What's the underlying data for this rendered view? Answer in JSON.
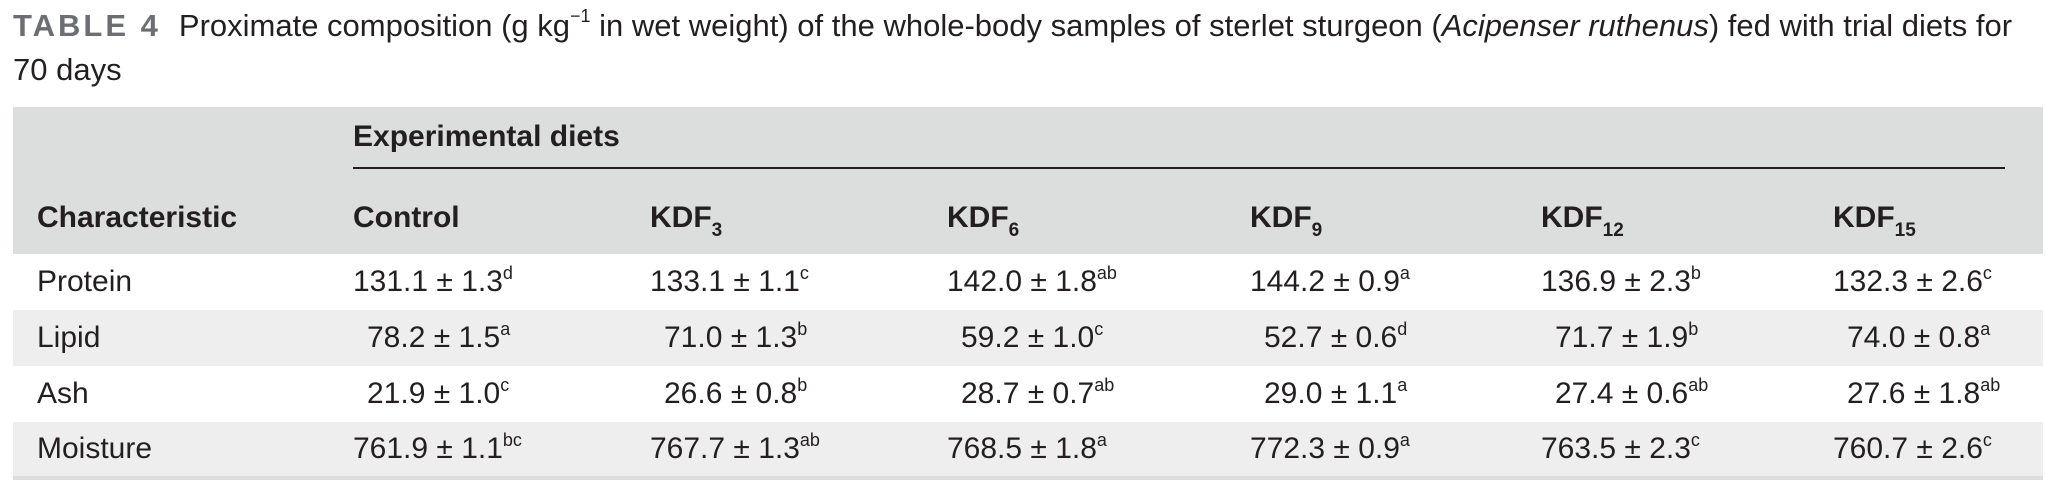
{
  "caption": {
    "label": "TABLE 4",
    "text_1": "Proximate composition (g kg",
    "unit_exponent": "−1",
    "text_2": " in wet weight) of the whole-body samples of sterlet sturgeon (",
    "species": "Acipenser ruthenus",
    "text_3": ") fed with trial diets for 70 days"
  },
  "table": {
    "group_header": "Experimental diets",
    "characteristic_header": "Characteristic",
    "columns": [
      {
        "base": "Control",
        "sub": ""
      },
      {
        "base": "KDF",
        "sub": "3"
      },
      {
        "base": "KDF",
        "sub": "6"
      },
      {
        "base": "KDF",
        "sub": "9"
      },
      {
        "base": "KDF",
        "sub": "12"
      },
      {
        "base": "KDF",
        "sub": "15"
      }
    ],
    "rows": [
      {
        "name": "Protein",
        "cells": [
          {
            "value": "131.1 ± 1.3",
            "sup": "d"
          },
          {
            "value": "133.1 ± 1.1",
            "sup": "c"
          },
          {
            "value": "142.0 ± 1.8",
            "sup": "ab"
          },
          {
            "value": "144.2 ± 0.9",
            "sup": "a"
          },
          {
            "value": "136.9 ± 2.3",
            "sup": "b"
          },
          {
            "value": "132.3 ± 2.6",
            "sup": "c"
          }
        ]
      },
      {
        "name": "Lipid",
        "cells": [
          {
            "value": "78.2 ± 1.5",
            "sup": "a"
          },
          {
            "value": "71.0 ± 1.3",
            "sup": "b"
          },
          {
            "value": "59.2 ± 1.0",
            "sup": "c"
          },
          {
            "value": "52.7 ± 0.6",
            "sup": "d"
          },
          {
            "value": "71.7 ± 1.9",
            "sup": "b"
          },
          {
            "value": "74.0 ± 0.8",
            "sup": "a"
          }
        ]
      },
      {
        "name": "Ash",
        "cells": [
          {
            "value": "21.9 ± 1.0",
            "sup": "c"
          },
          {
            "value": "26.6 ± 0.8",
            "sup": "b"
          },
          {
            "value": "28.7 ± 0.7",
            "sup": "ab"
          },
          {
            "value": "29.0 ± 1.1",
            "sup": "a"
          },
          {
            "value": "27.4 ± 0.6",
            "sup": "ab"
          },
          {
            "value": "27.6 ± 1.8",
            "sup": "ab"
          }
        ]
      },
      {
        "name": "Moisture",
        "cells": [
          {
            "value": "761.9 ± 1.1",
            "sup": "bc"
          },
          {
            "value": "767.7 ± 1.3",
            "sup": "ab"
          },
          {
            "value": "768.5 ± 1.8",
            "sup": "a"
          },
          {
            "value": "772.3 ± 0.9",
            "sup": "a"
          },
          {
            "value": "763.5 ± 2.3",
            "sup": "c"
          },
          {
            "value": "760.7 ± 2.6",
            "sup": "c"
          }
        ]
      }
    ]
  }
}
